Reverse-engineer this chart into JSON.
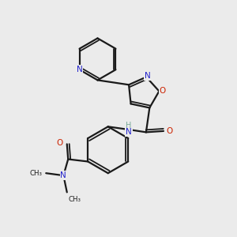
{
  "background_color": "#ebebeb",
  "bond_color": "#1a1a1a",
  "N_color": "#2222cc",
  "O_color": "#cc2200",
  "H_color": "#7aaa99",
  "figsize": [
    3.0,
    3.0
  ],
  "dpi": 100,
  "xlim": [
    0,
    10
  ],
  "ylim": [
    0,
    10
  ]
}
